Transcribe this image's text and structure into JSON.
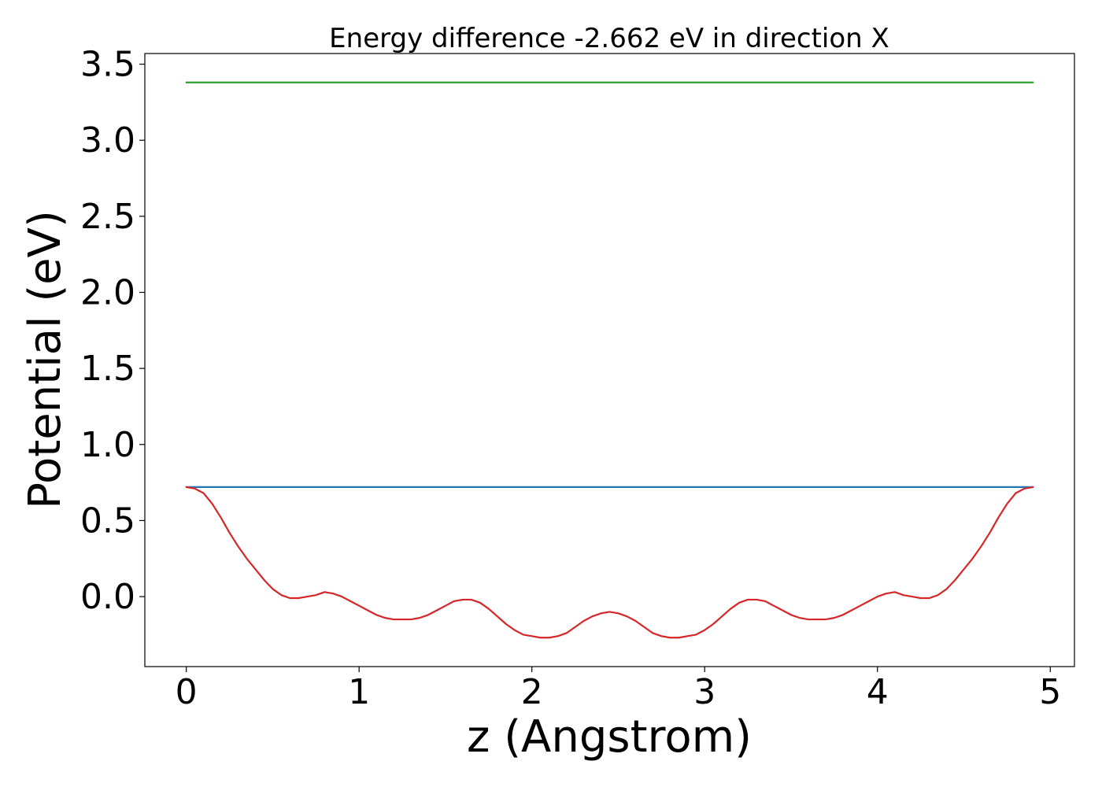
{
  "chart_data": {
    "type": "line",
    "title": "Energy difference -2.662 eV in direction X",
    "xlabel": "z (Angstrom)",
    "ylabel": "Potential (eV)",
    "xlim": [
      -0.24,
      5.14
    ],
    "ylim": [
      -0.46,
      3.57
    ],
    "xticks": [
      0,
      1,
      2,
      3,
      4,
      5
    ],
    "xtick_labels": [
      "0",
      "1",
      "2",
      "3",
      "4",
      "5"
    ],
    "yticks": [
      0.0,
      0.5,
      1.0,
      1.5,
      2.0,
      2.5,
      3.0,
      3.5
    ],
    "ytick_labels": [
      "0.0",
      "0.5",
      "1.0",
      "1.5",
      "2.0",
      "2.5",
      "3.0",
      "3.5"
    ],
    "grid": false,
    "series": [
      {
        "color": "#2ca02c",
        "x": [
          0,
          4.9
        ],
        "y": [
          3.38,
          3.38
        ]
      },
      {
        "color": "#1f77b4",
        "x": [
          0,
          4.9
        ],
        "y": [
          0.72,
          0.72
        ]
      },
      {
        "color": "#d62728",
        "x": [
          0,
          0.05,
          0.1,
          0.15,
          0.2,
          0.25,
          0.3,
          0.35,
          0.4,
          0.45,
          0.5,
          0.55,
          0.6,
          0.65,
          0.7,
          0.75,
          0.8,
          0.85,
          0.9,
          0.95,
          1.0,
          1.05,
          1.1,
          1.15,
          1.2,
          1.25,
          1.3,
          1.35,
          1.4,
          1.45,
          1.5,
          1.55,
          1.6,
          1.65,
          1.7,
          1.75,
          1.8,
          1.85,
          1.9,
          1.95,
          2.0,
          2.05,
          2.1,
          2.15,
          2.2,
          2.25,
          2.3,
          2.35,
          2.4,
          2.45,
          2.5,
          2.55,
          2.6,
          2.65,
          2.7,
          2.75,
          2.8,
          2.85,
          2.9,
          2.95,
          3.0,
          3.05,
          3.1,
          3.15,
          3.2,
          3.25,
          3.3,
          3.35,
          3.4,
          3.45,
          3.5,
          3.55,
          3.6,
          3.65,
          3.7,
          3.75,
          3.8,
          3.85,
          3.9,
          3.95,
          4.0,
          4.05,
          4.1,
          4.15,
          4.2,
          4.25,
          4.3,
          4.35,
          4.4,
          4.45,
          4.5,
          4.55,
          4.6,
          4.65,
          4.7,
          4.75,
          4.8,
          4.85,
          4.9
        ],
        "y": [
          0.72,
          0.71,
          0.68,
          0.61,
          0.52,
          0.42,
          0.33,
          0.25,
          0.18,
          0.11,
          0.05,
          0.01,
          -0.01,
          -0.01,
          0.0,
          0.01,
          0.03,
          0.02,
          0.0,
          -0.03,
          -0.06,
          -0.09,
          -0.12,
          -0.14,
          -0.15,
          -0.15,
          -0.15,
          -0.14,
          -0.12,
          -0.09,
          -0.06,
          -0.03,
          -0.02,
          -0.02,
          -0.04,
          -0.08,
          -0.13,
          -0.18,
          -0.22,
          -0.25,
          -0.26,
          -0.27,
          -0.27,
          -0.26,
          -0.24,
          -0.2,
          -0.16,
          -0.13,
          -0.11,
          -0.1,
          -0.11,
          -0.13,
          -0.16,
          -0.2,
          -0.24,
          -0.26,
          -0.27,
          -0.27,
          -0.26,
          -0.25,
          -0.22,
          -0.18,
          -0.13,
          -0.08,
          -0.04,
          -0.02,
          -0.02,
          -0.03,
          -0.06,
          -0.09,
          -0.12,
          -0.14,
          -0.15,
          -0.15,
          -0.15,
          -0.14,
          -0.12,
          -0.09,
          -0.06,
          -0.03,
          0.0,
          0.02,
          0.03,
          0.01,
          0.0,
          -0.01,
          -0.01,
          0.01,
          0.05,
          0.11,
          0.18,
          0.25,
          0.33,
          0.42,
          0.52,
          0.61,
          0.68,
          0.71,
          0.72
        ]
      }
    ]
  }
}
